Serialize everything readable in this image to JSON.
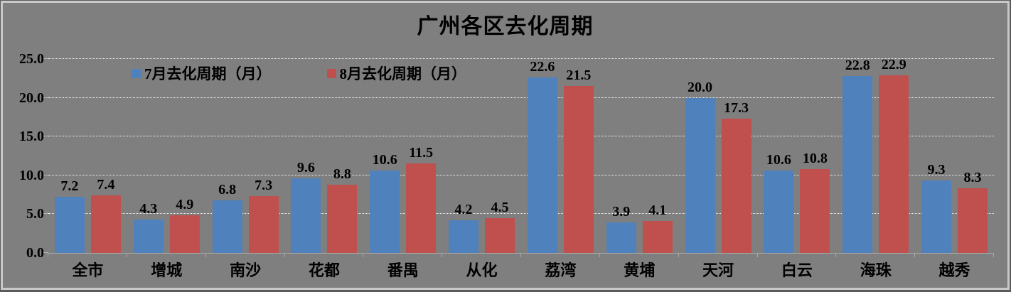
{
  "chart_data": {
    "type": "bar",
    "title": "广州各区去化周期",
    "categories": [
      "全市",
      "增城",
      "南沙",
      "花都",
      "番禺",
      "从化",
      "荔湾",
      "黄埔",
      "天河",
      "白云",
      "海珠",
      "越秀"
    ],
    "series": [
      {
        "name": "7月去化周期（月）",
        "color": "#4F81BD",
        "values": [
          7.2,
          4.3,
          6.8,
          9.6,
          10.6,
          4.2,
          22.6,
          3.9,
          20.0,
          10.6,
          22.8,
          9.3
        ]
      },
      {
        "name": "8月去化周期（月）",
        "color": "#C0504D",
        "values": [
          7.4,
          4.9,
          7.3,
          8.8,
          11.5,
          4.5,
          21.5,
          4.1,
          17.3,
          10.8,
          22.9,
          8.3
        ]
      }
    ],
    "ylim": [
      0,
      25
    ],
    "ytick_step": 5,
    "ytick_labels": [
      "0.0",
      "5.0",
      "10.0",
      "15.0",
      "20.0",
      "25.0"
    ],
    "value_label_decimals": 1,
    "grid": "horizontal dotted white gridlines at every 5 units",
    "legend_position": "inside top-left, horizontal"
  },
  "colors": {
    "background": "#7F7F7F",
    "series_july": "#4F81BD",
    "series_august": "#C0504D",
    "gridline": "#F2F2F2",
    "axis": "#A8A8A8",
    "text": "#000000",
    "frame_light": "#C9C9C9",
    "frame_dark": "#5A5A5A"
  }
}
